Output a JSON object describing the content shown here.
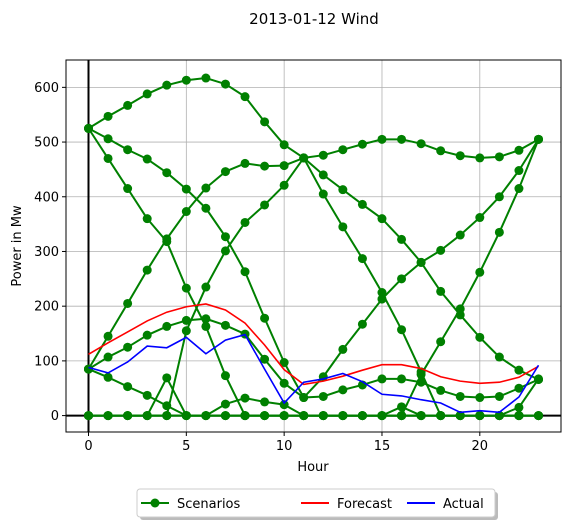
{
  "chart_data": {
    "type": "line",
    "title": "2013-01-12 Wind",
    "xlabel": "Hour",
    "ylabel": "Power in Mw",
    "xlim": [
      -1.15,
      24.15
    ],
    "ylim": [
      -30,
      650
    ],
    "xticks": [
      0,
      5,
      10,
      15,
      20
    ],
    "yticks": [
      0,
      100,
      200,
      300,
      400,
      500,
      600
    ],
    "grid": true,
    "legend": {
      "placement": "bottom-center-outside",
      "entries": [
        "Scenarios",
        "Forecast",
        "Actual"
      ]
    },
    "colors": {
      "scenarios": "#008000",
      "forecast": "#ff0000",
      "actual": "#0000ff",
      "grid": "#b0b0b0"
    },
    "x": [
      0,
      1,
      2,
      3,
      4,
      5,
      6,
      7,
      8,
      9,
      10,
      11,
      12,
      13,
      14,
      15,
      16,
      17,
      18,
      19,
      20,
      21,
      22,
      23
    ],
    "forecast": [
      112,
      133,
      153,
      173,
      189,
      199,
      204,
      193,
      169,
      129,
      84,
      57,
      63,
      72,
      83,
      93,
      93,
      86,
      71,
      63,
      59,
      61,
      70,
      90
    ],
    "actual": [
      88,
      78,
      98,
      127,
      124,
      143,
      113,
      138,
      148,
      85,
      23,
      61,
      67,
      77,
      62,
      39,
      36,
      29,
      23,
      6,
      9,
      6,
      34,
      92
    ],
    "scenarios": [
      {
        "values": [
          525,
          547,
          567,
          588,
          604,
          613,
          617,
          606,
          583,
          537,
          495,
          471,
          476,
          486,
          496,
          505,
          505,
          497,
          484,
          475,
          471,
          473,
          485,
          505
        ]
      },
      {
        "values": [
          525,
          506,
          486,
          469,
          444,
          414,
          379,
          327,
          263,
          178,
          97,
          33,
          71,
          121,
          167,
          213,
          250,
          280,
          302,
          330,
          362,
          400,
          448,
          505
        ]
      },
      {
        "values": [
          525,
          470,
          415,
          360,
          318,
          233,
          163,
          73,
          0,
          0,
          0,
          0,
          0,
          0,
          0,
          0,
          0,
          0,
          0,
          0,
          0,
          0,
          0,
          0
        ]
      },
      {
        "values": [
          85,
          145,
          205,
          266,
          323,
          373,
          416,
          446,
          461,
          456,
          457,
          471,
          405,
          345,
          287,
          225,
          157,
          80,
          0,
          0,
          0,
          0,
          0,
          0
        ]
      },
      {
        "values": [
          85,
          107,
          125,
          147,
          163,
          174,
          177,
          165,
          149,
          103,
          59,
          33,
          35,
          47,
          56,
          67,
          67,
          61,
          46,
          35,
          33,
          35,
          50,
          66
        ]
      },
      {
        "values": [
          85,
          70,
          53,
          37,
          18,
          0,
          0,
          0,
          0,
          0,
          0,
          0,
          0,
          0,
          0,
          0,
          0,
          0,
          0,
          0,
          0,
          0,
          0,
          0
        ]
      },
      {
        "values": [
          0,
          0,
          0,
          0,
          0,
          155,
          235,
          301,
          353,
          385,
          421,
          471,
          440,
          413,
          386,
          360,
          322,
          280,
          227,
          184,
          143,
          107,
          83,
          66
        ]
      },
      {
        "values": [
          0,
          0,
          0,
          0,
          0,
          0,
          0,
          0,
          0,
          0,
          0,
          0,
          0,
          0,
          0,
          0,
          0,
          75,
          135,
          195,
          262,
          335,
          415,
          505
        ]
      },
      {
        "values": [
          0,
          0,
          0,
          0,
          69,
          0,
          0,
          21,
          32,
          25,
          20,
          0,
          0,
          0,
          0,
          0,
          16,
          0,
          0,
          0,
          0,
          0,
          15,
          67
        ]
      },
      {
        "values": [
          0,
          0,
          0,
          0,
          0,
          0,
          0,
          0,
          0,
          0,
          0,
          0,
          0,
          0,
          0,
          0,
          0,
          0,
          0,
          0,
          0,
          0,
          0,
          0
        ]
      }
    ]
  }
}
